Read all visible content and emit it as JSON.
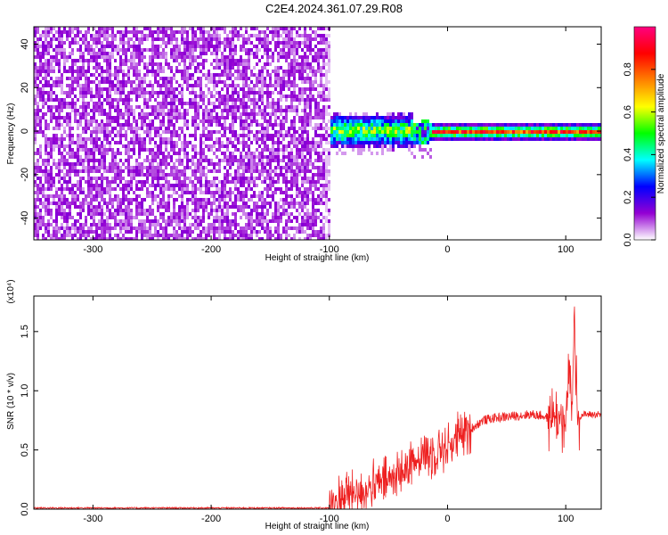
{
  "title": "C2E4.2024.361.07.29.R08",
  "chart_data": [
    {
      "type": "heatmap",
      "xlabel": "Height of straight line (km)",
      "ylabel": "Frequency (Hz)",
      "xlim": [
        -350,
        130
      ],
      "ylim": [
        -50,
        48
      ],
      "x_ticks": [
        -300,
        -200,
        -100,
        0,
        100
      ],
      "y_ticks": [
        -40,
        -20,
        0,
        20,
        40
      ],
      "colorbar": {
        "label": "Normalized spectral amplitude",
        "range": [
          0,
          1
        ],
        "ticks": [
          "0.0",
          "0.2",
          "0.4",
          "0.6",
          "0.8"
        ],
        "colors": [
          "#ffffff",
          "#9400d3",
          "#0000ff",
          "#00ffff",
          "#00ff00",
          "#ffff00",
          "#ff8000",
          "#ff0000",
          "#ff0080"
        ]
      }
    },
    {
      "type": "line",
      "xlabel": "Height of straight line (km)",
      "ylabel": "SNR (10 * v/v)",
      "y_multiplier": "(x10⁴)",
      "xlim": [
        -350,
        130
      ],
      "ylim": [
        0,
        1.8
      ],
      "x_ticks": [
        -300,
        -200,
        -100,
        0,
        100
      ],
      "y_ticks": [
        "0.0",
        "0.5",
        "1.0",
        "1.5"
      ],
      "series": [
        {
          "color": "#ee2020",
          "x": [
            -350,
            -300,
            -250,
            -200,
            -150,
            -100,
            -95,
            -90,
            -80,
            -70,
            -60,
            -50,
            -40,
            -30,
            -25,
            -20,
            -15,
            -10,
            -5,
            0,
            10,
            20,
            30,
            40,
            50,
            60,
            70,
            80,
            85,
            90,
            95,
            100,
            103,
            105,
            107,
            110,
            115,
            120,
            130
          ],
          "y": [
            0.01,
            0.01,
            0.01,
            0.01,
            0.01,
            0.01,
            0.04,
            0.1,
            0.13,
            0.16,
            0.2,
            0.24,
            0.3,
            0.38,
            0.45,
            0.47,
            0.45,
            0.5,
            0.52,
            0.53,
            0.6,
            0.68,
            0.75,
            0.77,
            0.78,
            0.79,
            0.8,
            0.79,
            0.77,
            0.8,
            0.75,
            0.68,
            1.25,
            0.7,
            1.6,
            0.78,
            0.8,
            0.8,
            0.8
          ]
        }
      ]
    }
  ]
}
